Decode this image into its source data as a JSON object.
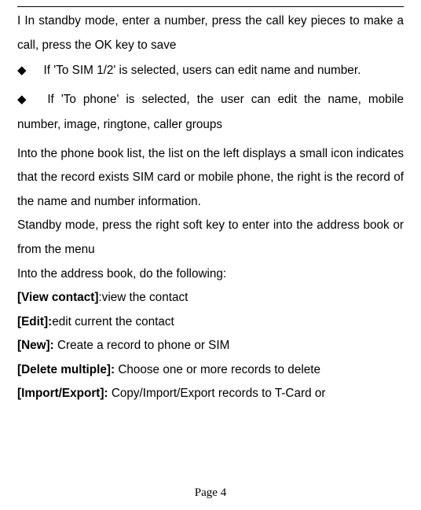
{
  "p1": "I In standby mode, enter a number, press the call key pieces to make a call, press the OK key to save",
  "b1": "If 'To SIM 1/2' is selected, users can edit name and number.",
  "b2": "If 'To phone' is selected, the user can edit the name, mobile number, image, ringtone, caller groups",
  "p2": "Into the phone book list, the list on the left displays a small icon indicates that the record exists SIM card or mobile phone, the right is the record of the name and number information.",
  "p3": "Standby mode, press the right soft key to enter into the address book or from the menu",
  "p4": "Into the address book, do the following:",
  "items": {
    "view_label": "[View contact]",
    "view_text": ":view the contact",
    "edit_label": "[Edit]:",
    "edit_text": "edit current the contact",
    "new_label": "[New]: ",
    "new_text": "Create a record to phone or SIM",
    "del_label": "[Delete multiple]: ",
    "del_text": "Choose one or more records to delete",
    "ie_label": "[Import/Export]: ",
    "ie_text": "Copy/Import/Export records to T-Card or"
  },
  "footer": "Page 4"
}
